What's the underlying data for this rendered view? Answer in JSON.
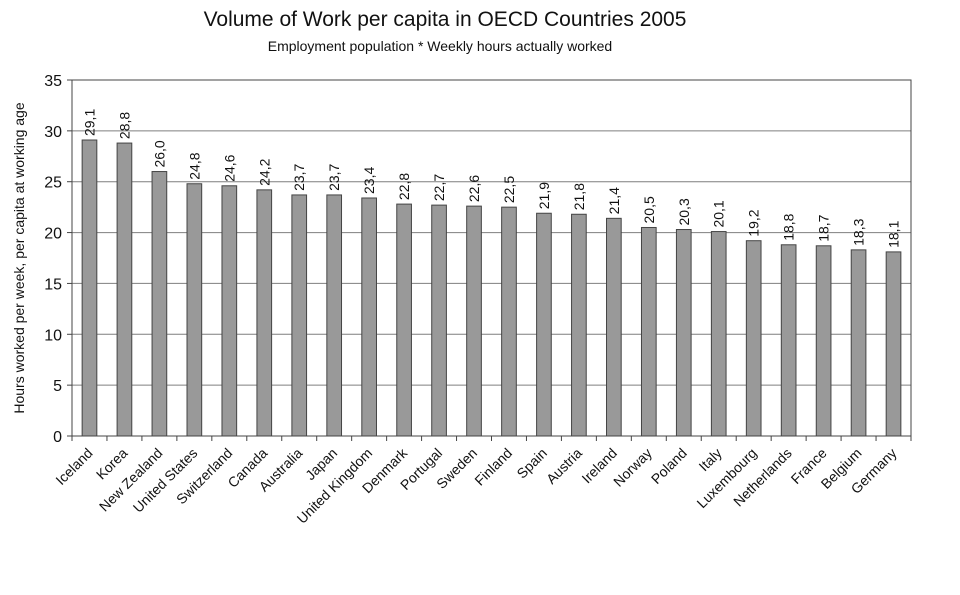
{
  "chart_data": {
    "type": "bar",
    "title": "Volume of Work per capita in OECD Countries 2005",
    "subtitle": "Employment population * Weekly hours actually worked",
    "xlabel": "",
    "ylabel": "Hours worked per week, per capita at working age",
    "ylim": [
      0,
      35
    ],
    "yticks": [
      0,
      5,
      10,
      15,
      20,
      25,
      30,
      35
    ],
    "grid": true,
    "categories": [
      "Iceland",
      "Korea",
      "New Zealand",
      "United States",
      "Switzerland",
      "Canada",
      "Australia",
      "Japan",
      "United Kingdom",
      "Denmark",
      "Portugal",
      "Sweden",
      "Finland",
      "Spain",
      "Austria",
      "Ireland",
      "Norway",
      "Poland",
      "Italy",
      "Luxembourg",
      "Netherlands",
      "France",
      "Belgium",
      "Germany"
    ],
    "values": [
      29.1,
      28.8,
      26.0,
      24.8,
      24.6,
      24.2,
      23.7,
      23.7,
      23.4,
      22.8,
      22.7,
      22.6,
      22.5,
      21.9,
      21.8,
      21.4,
      20.5,
      20.3,
      20.1,
      19.2,
      18.8,
      18.7,
      18.3,
      18.1
    ],
    "value_labels": [
      "29,1",
      "28,8",
      "26,0",
      "24,8",
      "24,6",
      "24,2",
      "23,7",
      "23,7",
      "23,4",
      "22,8",
      "22,7",
      "22,6",
      "22,5",
      "21,9",
      "21,8",
      "21,4",
      "20,5",
      "20,3",
      "20,1",
      "19,2",
      "18,8",
      "18,7",
      "18,3",
      "18,1"
    ],
    "bar_color": "#999999",
    "gridline_color": "#7f7f7f",
    "legend": "none"
  }
}
